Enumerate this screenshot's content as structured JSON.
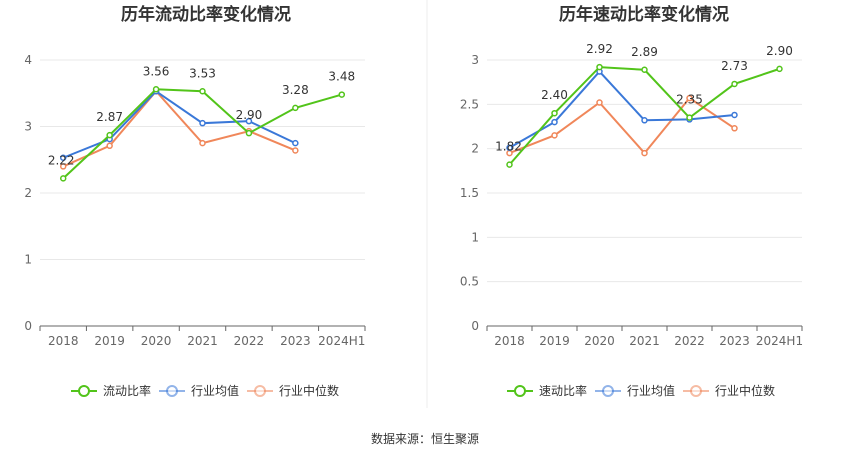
{
  "chart_data": [
    {
      "type": "line",
      "title": "历年流动比率变化情况",
      "categories": [
        "2018",
        "2019",
        "2020",
        "2021",
        "2022",
        "2023",
        "2024H1"
      ],
      "ylim": [
        0,
        4
      ],
      "yticks": [
        "0",
        "1",
        "2",
        "3",
        "4"
      ],
      "grid": true,
      "legend_position": "bottom",
      "series": [
        {
          "name": "流动比率",
          "color": "#52c41a",
          "values": [
            2.22,
            2.87,
            3.56,
            3.53,
            2.9,
            3.28,
            3.48
          ],
          "labels": [
            "2.22",
            "2.87",
            "3.56",
            "3.53",
            "2.90",
            "3.28",
            "3.48"
          ]
        },
        {
          "name": "行业均值",
          "color": "#3a78d8",
          "values": [
            2.53,
            2.81,
            3.53,
            3.05,
            3.08,
            2.75,
            null
          ]
        },
        {
          "name": "行业中位数",
          "color": "#f0875a",
          "values": [
            2.4,
            2.71,
            3.53,
            2.75,
            2.93,
            2.64,
            null
          ]
        }
      ]
    },
    {
      "type": "line",
      "title": "历年速动比率变化情况",
      "categories": [
        "2018",
        "2019",
        "2020",
        "2021",
        "2022",
        "2023",
        "2024H1"
      ],
      "ylim": [
        0,
        3
      ],
      "yticks": [
        "0",
        "0.5",
        "1",
        "1.5",
        "2",
        "2.5",
        "3"
      ],
      "grid": true,
      "legend_position": "bottom",
      "series": [
        {
          "name": "速动比率",
          "color": "#52c41a",
          "values": [
            1.82,
            2.4,
            2.92,
            2.89,
            2.35,
            2.73,
            2.9
          ],
          "labels": [
            "1.82",
            "2.40",
            "2.92",
            "2.89",
            "2.35",
            "2.73",
            "2.90"
          ]
        },
        {
          "name": "行业均值",
          "color": "#3a78d8",
          "values": [
            2.01,
            2.3,
            2.87,
            2.32,
            2.33,
            2.38,
            null
          ]
        },
        {
          "name": "行业中位数",
          "color": "#f0875a",
          "values": [
            1.95,
            2.15,
            2.52,
            1.95,
            2.57,
            2.23,
            null
          ]
        }
      ]
    }
  ],
  "footer": {
    "source": "数据来源：恒生聚源"
  }
}
